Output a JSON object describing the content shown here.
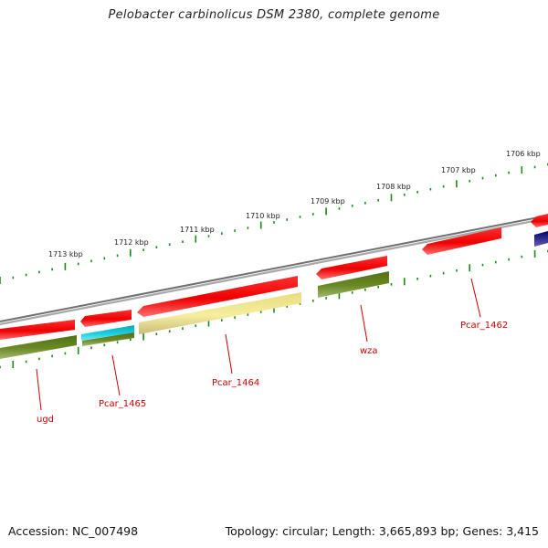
{
  "title": "Pelobacter carbinolicus DSM 2380, complete genome",
  "footer": {
    "accession": "Accession: NC_007498",
    "summary": "Topology: circular; Length: 3,665,893 bp; Genes: 3,415"
  },
  "colors": {
    "backbone": "#808080",
    "forward_gene": "#ee0000",
    "reverse_gene": "#5f7f20",
    "highlight_cyan": "#10c8d8",
    "highlight_yellow": "#f4eb9a",
    "navy_gene": "#000080",
    "tick": "#1a8a1a",
    "gene_label": "#cc0000"
  },
  "kbp_ticks": [
    "1713 kbp",
    "1712 kbp",
    "1711 kbp",
    "1710 kbp",
    "1709 kbp",
    "1708 kbp",
    "1707 kbp",
    "1706 kbp"
  ],
  "gene_labels": [
    "ugd",
    "Pcar_1465",
    "Pcar_1464",
    "wza",
    "Pcar_1462"
  ]
}
